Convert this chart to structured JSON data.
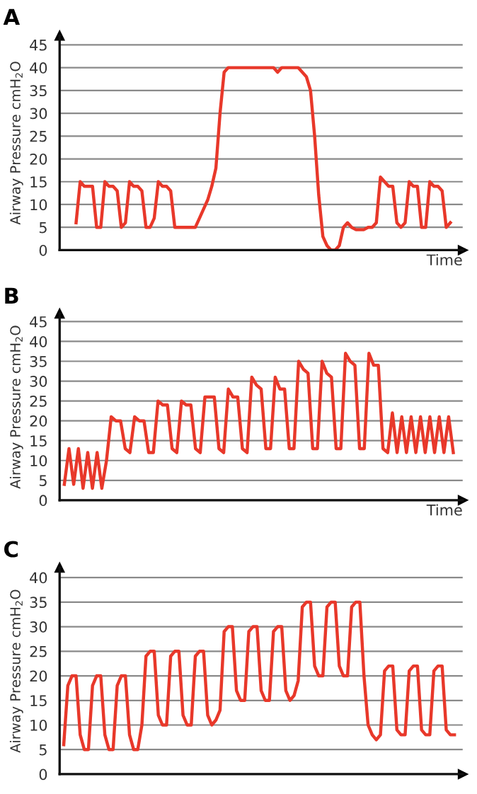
{
  "chart_data": [
    {
      "type": "line",
      "title": "A",
      "xlabel": "Time",
      "ylabel": "Airway Pressure cmH$_{2}$O",
      "ylim": [
        0,
        47
      ],
      "yticks": [
        0,
        5,
        10,
        15,
        20,
        25,
        30,
        35,
        40,
        45
      ],
      "grid": "y",
      "categories": [
        null,
        null,
        null,
        null,
        null,
        null,
        null,
        null,
        null,
        null,
        null,
        null,
        null,
        null,
        null,
        null,
        null,
        null,
        null,
        null,
        null,
        null,
        null,
        null,
        null,
        null,
        null,
        null,
        null,
        null,
        null,
        null,
        null,
        null,
        null,
        null,
        null,
        null,
        null,
        null,
        null,
        null,
        null,
        null,
        null,
        null,
        null,
        null,
        null,
        null,
        null,
        null,
        null,
        null,
        null,
        null,
        null,
        null,
        null,
        null,
        null,
        null,
        null,
        null,
        null,
        null,
        null,
        null,
        null,
        null,
        null,
        null,
        null,
        null,
        null,
        null,
        null,
        null,
        null,
        null,
        null,
        null,
        null,
        null,
        null,
        null,
        null,
        null,
        null,
        null,
        null,
        null,
        null,
        null,
        null,
        null
      ],
      "series": [
        {
          "color": "#e8382a",
          "values": [
            null,
            null,
            null,
            6,
            15,
            14,
            14,
            14,
            5,
            5,
            15,
            14,
            14,
            13,
            5,
            6,
            15,
            14,
            14,
            13,
            5,
            5,
            7,
            15,
            14,
            14,
            13,
            5,
            5,
            5,
            5,
            5,
            5,
            7,
            9,
            11,
            14,
            18,
            30,
            39,
            40,
            40,
            40,
            40,
            40,
            40,
            40,
            40,
            40,
            40,
            40,
            40,
            39,
            40,
            40,
            40,
            40,
            40,
            39,
            38,
            35,
            25,
            12,
            3,
            1,
            0,
            0,
            1,
            5,
            6,
            5,
            4.5,
            4.5,
            4.5,
            5,
            5,
            6,
            16,
            15,
            14,
            14,
            6,
            5,
            6,
            15,
            14,
            14,
            5,
            5,
            15,
            14,
            14,
            13,
            5,
            6,
            null
          ]
        }
      ]
    },
    {
      "type": "line",
      "title": "B",
      "xlabel": "Time",
      "ylabel": "Airway Pressure cmH$_{2}$O",
      "ylim": [
        0,
        47
      ],
      "yticks": [
        0,
        5,
        10,
        15,
        20,
        25,
        30,
        35,
        40,
        45
      ],
      "grid": "y",
      "categories": [
        null,
        null,
        null,
        null,
        null,
        null,
        null,
        null,
        null,
        null,
        null,
        null,
        null,
        null,
        null,
        null,
        null,
        null,
        null,
        null,
        null,
        null,
        null,
        null,
        null,
        null,
        null,
        null,
        null,
        null,
        null,
        null,
        null,
        null,
        null,
        null,
        null,
        null,
        null,
        null,
        null,
        null,
        null,
        null,
        null,
        null,
        null,
        null,
        null,
        null,
        null,
        null,
        null,
        null,
        null,
        null,
        null,
        null,
        null,
        null,
        null,
        null,
        null,
        null,
        null,
        null,
        null,
        null,
        null,
        null,
        null,
        null,
        null,
        null,
        null,
        null,
        null,
        null,
        null,
        null,
        null,
        null,
        null,
        null
      ],
      "series": [
        {
          "color": "#e8382a",
          "values": [
            4,
            13,
            4,
            13,
            3,
            12,
            3,
            12,
            3,
            10,
            21,
            20,
            20,
            13,
            12,
            21,
            20,
            20,
            12,
            12,
            25,
            24,
            24,
            13,
            12,
            25,
            24,
            24,
            13,
            12,
            26,
            26,
            26,
            13,
            12,
            28,
            26,
            26,
            13,
            12,
            31,
            29,
            28,
            13,
            13,
            31,
            28,
            28,
            13,
            13,
            35,
            33,
            32,
            13,
            13,
            35,
            32,
            31,
            13,
            13,
            37,
            35,
            34,
            13,
            13,
            37,
            34,
            34,
            13,
            12,
            22,
            12,
            21,
            12,
            21,
            12,
            21,
            12,
            21,
            12,
            21,
            12,
            21,
            12
          ]
        }
      ]
    },
    {
      "type": "line",
      "title": "C",
      "ylabel": "Airway Pressure cmH$_{2}$O",
      "ylim": [
        0,
        42
      ],
      "yticks": [
        0,
        5,
        10,
        15,
        20,
        25,
        30,
        35,
        40
      ],
      "grid": "y",
      "categories": [
        null,
        null,
        null,
        null,
        null,
        null,
        null,
        null,
        null,
        null,
        null,
        null,
        null,
        null,
        null,
        null,
        null,
        null,
        null,
        null,
        null,
        null,
        null,
        null,
        null,
        null,
        null,
        null,
        null,
        null,
        null,
        null,
        null,
        null,
        null,
        null,
        null,
        null,
        null,
        null,
        null,
        null,
        null,
        null,
        null,
        null,
        null,
        null,
        null,
        null,
        null,
        null,
        null,
        null,
        null,
        null,
        null,
        null,
        null,
        null,
        null,
        null,
        null,
        null,
        null,
        null,
        null,
        null,
        null,
        null,
        null,
        null,
        null,
        null,
        null,
        null,
        null,
        null,
        null,
        null,
        null,
        null,
        null,
        null,
        null,
        null,
        null,
        null,
        null,
        null,
        null,
        null,
        null,
        null,
        null,
        null
      ],
      "series": [
        {
          "color": "#e8382a",
          "values": [
            6,
            18,
            20,
            20,
            8,
            5,
            5,
            18,
            20,
            20,
            8,
            5,
            5,
            18,
            20,
            20,
            8,
            5,
            5,
            10,
            24,
            25,
            25,
            12,
            10,
            10,
            24,
            25,
            25,
            12,
            10,
            10,
            24,
            25,
            25,
            12,
            10,
            11,
            13,
            29,
            30,
            30,
            17,
            15,
            15,
            29,
            30,
            30,
            17,
            15,
            15,
            29,
            30,
            30,
            17,
            15,
            16,
            19,
            34,
            35,
            35,
            22,
            20,
            20,
            34,
            35,
            35,
            22,
            20,
            20,
            34,
            35,
            35,
            20,
            10,
            8,
            7,
            8,
            21,
            22,
            22,
            9,
            8,
            8,
            21,
            22,
            22,
            9,
            8,
            8,
            21,
            22,
            22,
            9,
            8,
            8
          ]
        }
      ]
    }
  ]
}
